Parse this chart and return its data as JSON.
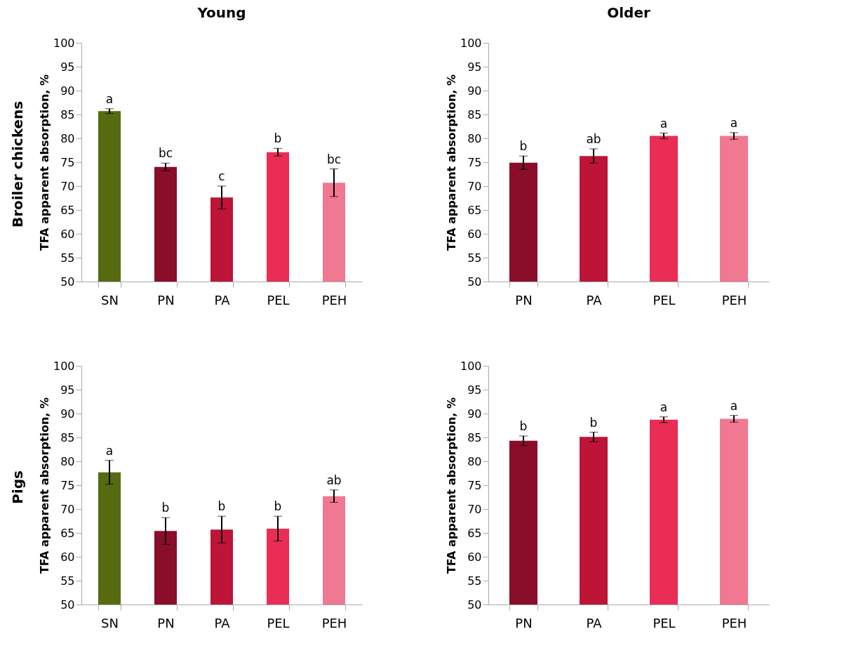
{
  "chart_data": [
    {
      "type": "bar",
      "title": "Young",
      "annotations": [
        "Broiler chickens"
      ],
      "ylabel": "TFA apparent absorption, %",
      "categories": [
        "SN",
        "PN",
        "PA",
        "PEL",
        "PEH"
      ],
      "values": [
        85.7,
        74,
        67.6,
        77.1,
        70.7
      ],
      "errors": [
        0.5,
        0.8,
        2.4,
        0.8,
        2.9
      ],
      "value_labels": [
        "a",
        "bc",
        "c",
        "b",
        "bc"
      ],
      "colors": [
        "#566a0f",
        "#8a0e2a",
        "#bd1437",
        "#e92d55",
        "#f07891"
      ],
      "ylim": [
        50,
        100
      ],
      "yticks": [
        50,
        55,
        60,
        65,
        70,
        75,
        80,
        85,
        90,
        95,
        100
      ]
    },
    {
      "type": "bar",
      "title": "Older",
      "ylabel": "TFA apparent absorption, %",
      "categories": [
        "PN",
        "PA",
        "PEL",
        "PEH"
      ],
      "values": [
        74.9,
        76.3,
        80.5,
        80.5
      ],
      "errors": [
        1.4,
        1.5,
        0.6,
        0.7
      ],
      "value_labels": [
        "b",
        "ab",
        "a",
        "a"
      ],
      "colors": [
        "#8a0e2a",
        "#bd1437",
        "#e92d55",
        "#f07891"
      ],
      "ylim": [
        50,
        100
      ],
      "yticks": [
        50,
        55,
        60,
        65,
        70,
        75,
        80,
        85,
        90,
        95,
        100
      ]
    },
    {
      "type": "bar",
      "annotations": [
        "Pigs"
      ],
      "ylabel": "TFA apparent absorption, %",
      "categories": [
        "SN",
        "PN",
        "PA",
        "PEL",
        "PEH"
      ],
      "values": [
        77.7,
        65.4,
        65.7,
        65.9,
        72.7
      ],
      "errors": [
        2.5,
        2.8,
        2.8,
        2.6,
        1.3
      ],
      "value_labels": [
        "a",
        "b",
        "b",
        "b",
        "ab"
      ],
      "colors": [
        "#566a0f",
        "#8a0e2a",
        "#bd1437",
        "#e92d55",
        "#f07891"
      ],
      "ylim": [
        50,
        100
      ],
      "yticks": [
        50,
        55,
        60,
        65,
        70,
        75,
        80,
        85,
        90,
        95,
        100
      ]
    },
    {
      "type": "bar",
      "ylabel": "TFA apparent absorption, %",
      "categories": [
        "PN",
        "PA",
        "PEL",
        "PEH"
      ],
      "values": [
        84.3,
        85.1,
        88.7,
        88.9
      ],
      "errors": [
        1.0,
        1.0,
        0.6,
        0.7
      ],
      "value_labels": [
        "b",
        "b",
        "a",
        "a"
      ],
      "colors": [
        "#8a0e2a",
        "#bd1437",
        "#e92d55",
        "#f07891"
      ],
      "ylim": [
        50,
        100
      ],
      "yticks": [
        50,
        55,
        60,
        65,
        70,
        75,
        80,
        85,
        90,
        95,
        100
      ]
    }
  ]
}
